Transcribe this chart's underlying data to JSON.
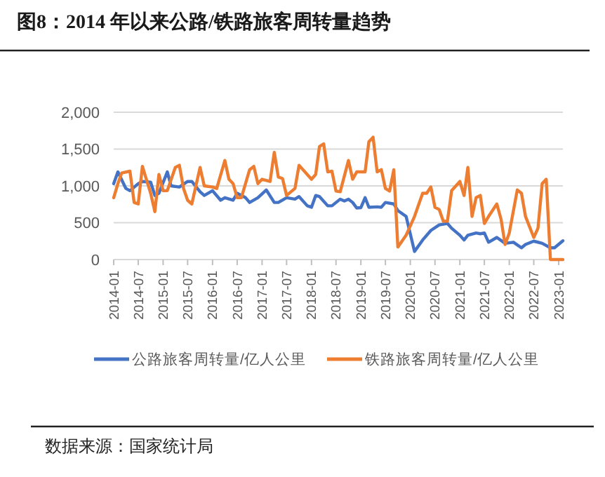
{
  "chart_data": {
    "type": "line",
    "title": "图8：2014 年以来公路/铁路旅客周转量趋势",
    "annotations": [
      "数据来源：国家统计局"
    ],
    "xlim": [
      "2014-01",
      "2023-02"
    ],
    "xticks": [
      "2014-01",
      "2014-07",
      "2015-01",
      "2015-07",
      "2016-01",
      "2016-07",
      "2017-01",
      "2017-07",
      "2018-01",
      "2018-07",
      "2019-01",
      "2019-07",
      "2020-01",
      "2020-07",
      "2021-01",
      "2021-07",
      "2022-01",
      "2022-07",
      "2023-01"
    ],
    "ylim": [
      0,
      2000
    ],
    "yticks": [
      0,
      {
        "value": 500,
        "label": "500"
      },
      {
        "value": 1000,
        "label": "1,000"
      },
      {
        "value": 1500,
        "label": "1,500"
      },
      {
        "value": 2000,
        "label": "2,000"
      }
    ],
    "grid": "y",
    "legend": "bottom",
    "series": [
      {
        "name": "公路旅客周转量/亿人公里",
        "color": "#4472c4",
        "x": [
          "2014-01",
          "2014-02",
          "2014-04",
          "2014-05",
          "2014-07",
          "2014-08",
          "2014-10",
          "2014-11",
          "2014-12",
          "2015-02",
          "2015-03",
          "2015-05",
          "2015-07",
          "2015-08",
          "2015-10",
          "2015-11",
          "2016-01",
          "2016-03",
          "2016-04",
          "2016-06",
          "2016-07",
          "2016-09",
          "2016-10",
          "2016-12",
          "2017-02",
          "2017-04",
          "2017-05",
          "2017-07",
          "2017-09",
          "2017-10",
          "2017-12",
          "2018-01",
          "2018-02",
          "2018-03",
          "2018-05",
          "2018-06",
          "2018-08",
          "2018-09",
          "2018-10",
          "2018-11",
          "2018-12",
          "2019-01",
          "2019-02",
          "2019-03",
          "2019-05",
          "2019-06",
          "2019-07",
          "2019-09",
          "2019-10",
          "2019-12",
          "2020-02",
          "2020-04",
          "2020-06",
          "2020-08",
          "2020-10",
          "2020-11",
          "2021-01",
          "2021-02",
          "2021-03",
          "2021-05",
          "2021-06",
          "2021-07",
          "2021-08",
          "2021-10",
          "2021-12",
          "2022-02",
          "2022-04",
          "2022-05",
          "2022-07",
          "2022-09",
          "2022-11",
          "2022-12",
          "2023-02"
        ],
        "values": [
          1030,
          1190,
          965,
          935,
          1030,
          1060,
          1050,
          870,
          900,
          1190,
          1000,
          985,
          1060,
          1060,
          920,
          870,
          935,
          805,
          840,
          805,
          900,
          840,
          775,
          840,
          945,
          775,
          775,
          840,
          820,
          855,
          730,
          710,
          870,
          855,
          730,
          730,
          820,
          795,
          820,
          775,
          700,
          705,
          840,
          710,
          715,
          710,
          775,
          755,
          665,
          585,
          110,
          265,
          395,
          470,
          490,
          425,
          330,
          265,
          330,
          360,
          350,
          360,
          235,
          300,
          220,
          235,
          160,
          205,
          250,
          220,
          160,
          160,
          255
        ]
      },
      {
        "name": "铁路旅客周转量/亿人公里",
        "color": "#ed7d31",
        "x": [
          "2014-01",
          "2014-02",
          "2014-03",
          "2014-05",
          "2014-06",
          "2014-07",
          "2014-08",
          "2014-10",
          "2014-11",
          "2014-12",
          "2015-01",
          "2015-02",
          "2015-04",
          "2015-05",
          "2015-06",
          "2015-07",
          "2015-08",
          "2015-10",
          "2015-11",
          "2016-01",
          "2016-02",
          "2016-04",
          "2016-05",
          "2016-06",
          "2016-07",
          "2016-08",
          "2016-10",
          "2016-11",
          "2016-12",
          "2017-01",
          "2017-03",
          "2017-04",
          "2017-05",
          "2017-06",
          "2017-07",
          "2017-09",
          "2017-10",
          "2018-01",
          "2018-02",
          "2018-03",
          "2018-04",
          "2018-05",
          "2018-06",
          "2018-07",
          "2018-08",
          "2018-10",
          "2018-11",
          "2018-12",
          "2019-02",
          "2019-03",
          "2019-04",
          "2019-05",
          "2019-06",
          "2019-07",
          "2019-08",
          "2019-09",
          "2019-10",
          "2019-12",
          "2020-02",
          "2020-04",
          "2020-05",
          "2020-06",
          "2020-07",
          "2020-08",
          "2020-09",
          "2020-10",
          "2020-11",
          "2021-01",
          "2021-02",
          "2021-03",
          "2021-04",
          "2021-05",
          "2021-06",
          "2021-07",
          "2021-08",
          "2021-10",
          "2021-11",
          "2021-12",
          "2022-01",
          "2022-03",
          "2022-04",
          "2022-05",
          "2022-07",
          "2022-08",
          "2022-09",
          "2022-10",
          "2022-11",
          "2023-02"
        ],
        "values": [
          840,
          1030,
          1175,
          1200,
          775,
          755,
          1265,
          900,
          650,
          1155,
          935,
          935,
          1250,
          1280,
          965,
          805,
          755,
          1250,
          1000,
          985,
          965,
          1345,
          1090,
          1030,
          840,
          840,
          1220,
          1265,
          1030,
          1090,
          1060,
          1455,
          1120,
          1100,
          870,
          965,
          1280,
          1090,
          1155,
          1535,
          1570,
          1190,
          1200,
          930,
          920,
          1345,
          1090,
          1190,
          1190,
          1600,
          1660,
          1190,
          1220,
          965,
          930,
          1220,
          170,
          330,
          585,
          900,
          900,
          985,
          710,
          680,
          520,
          520,
          935,
          1060,
          870,
          1250,
          585,
          840,
          870,
          490,
          585,
          755,
          550,
          205,
          360,
          945,
          900,
          585,
          300,
          425,
          1030,
          1090,
          0,
          0
        ]
      }
    ]
  }
}
